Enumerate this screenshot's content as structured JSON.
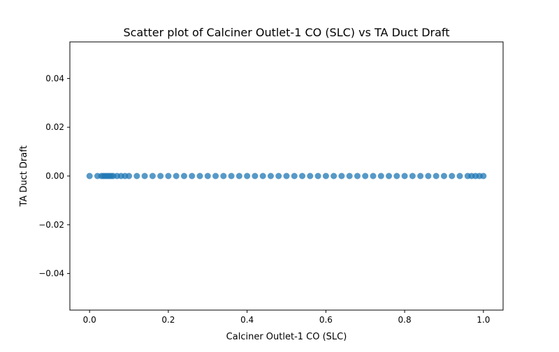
{
  "chart_data": {
    "type": "scatter",
    "title": "Scatter plot of Calciner Outlet-1 CO (SLC) vs TA Duct Draft",
    "xlabel": "Calciner Outlet-1 CO (SLC)",
    "ylabel": "TA Duct Draft",
    "xlim": [
      -0.05,
      1.05
    ],
    "ylim": [
      -0.055,
      0.055
    ],
    "x_ticks": [
      0.0,
      0.2,
      0.4,
      0.6,
      0.8,
      1.0
    ],
    "x_tick_labels": [
      "0.0",
      "0.2",
      "0.4",
      "0.6",
      "0.8",
      "1.0"
    ],
    "y_ticks": [
      -0.04,
      -0.02,
      0.0,
      0.02,
      0.04
    ],
    "y_tick_labels": [
      "−0.04",
      "−0.02",
      "0.00",
      "0.02",
      "0.04"
    ],
    "grid": false,
    "marker_color": "#1f77b4",
    "points": {
      "x": [
        0.0,
        0.02,
        0.03,
        0.035,
        0.04,
        0.045,
        0.05,
        0.055,
        0.06,
        0.07,
        0.08,
        0.09,
        0.1,
        0.12,
        0.14,
        0.16,
        0.18,
        0.2,
        0.22,
        0.24,
        0.26,
        0.28,
        0.3,
        0.32,
        0.34,
        0.36,
        0.38,
        0.4,
        0.42,
        0.44,
        0.46,
        0.48,
        0.5,
        0.52,
        0.54,
        0.56,
        0.58,
        0.6,
        0.62,
        0.64,
        0.66,
        0.68,
        0.7,
        0.72,
        0.74,
        0.76,
        0.78,
        0.8,
        0.82,
        0.84,
        0.86,
        0.88,
        0.9,
        0.92,
        0.94,
        0.96,
        0.97,
        0.98,
        0.99,
        1.0
      ],
      "y": [
        0,
        0,
        0,
        0,
        0,
        0,
        0,
        0,
        0,
        0,
        0,
        0,
        0,
        0,
        0,
        0,
        0,
        0,
        0,
        0,
        0,
        0,
        0,
        0,
        0,
        0,
        0,
        0,
        0,
        0,
        0,
        0,
        0,
        0,
        0,
        0,
        0,
        0,
        0,
        0,
        0,
        0,
        0,
        0,
        0,
        0,
        0,
        0,
        0,
        0,
        0,
        0,
        0,
        0,
        0,
        0,
        0,
        0,
        0,
        0
      ]
    }
  }
}
